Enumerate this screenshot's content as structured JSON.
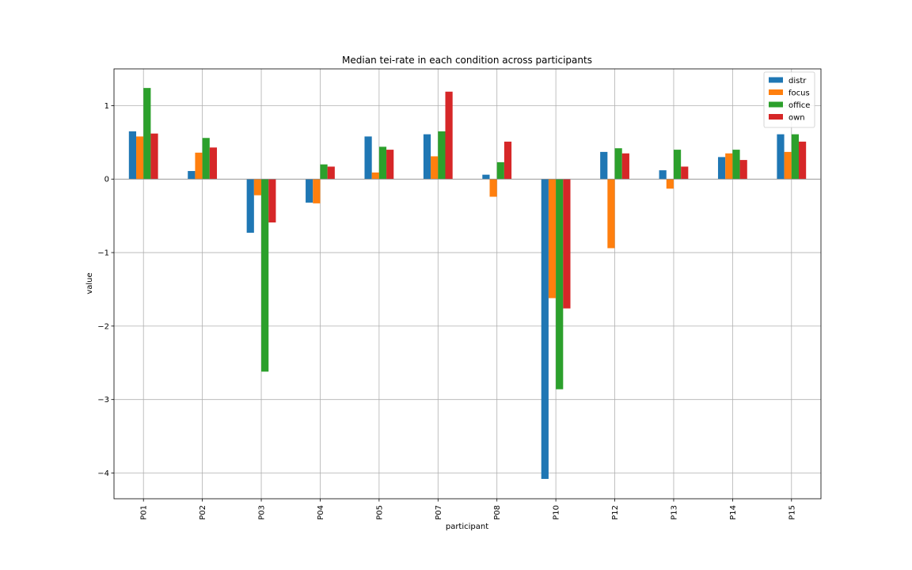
{
  "chart_data": {
    "type": "bar",
    "title": "Median tei-rate in each condition across participants",
    "xlabel": "participant",
    "ylabel": "value",
    "categories": [
      "P01",
      "P02",
      "P03",
      "P04",
      "P05",
      "P07",
      "P08",
      "P10",
      "P12",
      "P13",
      "P14",
      "P15"
    ],
    "series": [
      {
        "name": "distr",
        "color": "#1f77b4",
        "values": [
          0.65,
          0.11,
          -0.73,
          -0.32,
          0.58,
          0.61,
          0.06,
          -4.08,
          0.37,
          0.12,
          0.3,
          0.61
        ]
      },
      {
        "name": "focus",
        "color": "#ff7f0e",
        "values": [
          0.58,
          0.36,
          -0.22,
          -0.33,
          0.09,
          0.31,
          -0.24,
          -1.62,
          -0.94,
          -0.13,
          0.35,
          0.37
        ]
      },
      {
        "name": "office",
        "color": "#2ca02c",
        "values": [
          1.24,
          0.56,
          -2.62,
          0.2,
          0.44,
          0.65,
          0.23,
          -2.86,
          0.42,
          0.4,
          0.4,
          0.61
        ]
      },
      {
        "name": "own",
        "color": "#d62728",
        "values": [
          0.62,
          0.43,
          -0.59,
          0.17,
          0.4,
          1.19,
          0.51,
          -1.76,
          0.35,
          0.17,
          0.26,
          0.51
        ]
      }
    ],
    "ylim": [
      -4.35,
      1.5
    ],
    "yticks": [
      1,
      0,
      -1,
      -2,
      -3,
      -4
    ],
    "ytick_labels": [
      "1",
      "0",
      "−1",
      "−2",
      "−3",
      "−4"
    ],
    "grid": true,
    "legend_position": "top-right"
  }
}
